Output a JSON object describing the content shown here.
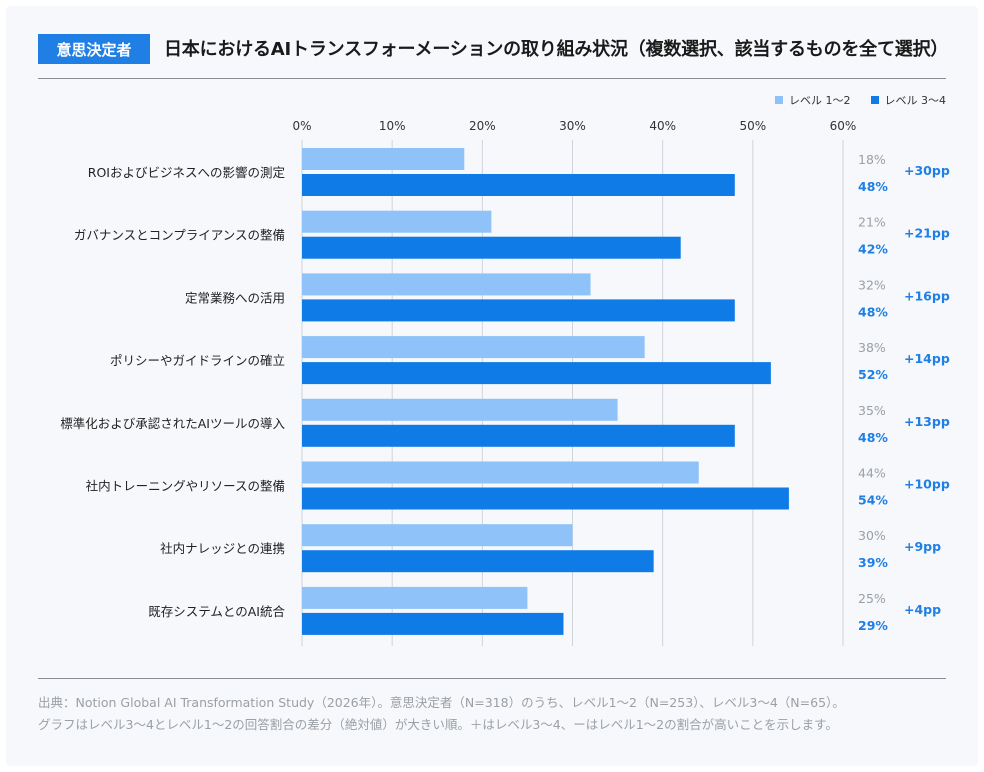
{
  "header": {
    "badge": "意思決定者",
    "title": "日本におけるAIトランスフォーメーションの取り組み状況（複数選択、該当するものを全て選択）"
  },
  "legend": [
    {
      "label": "レベル 1〜2",
      "color": "#8ec2f8"
    },
    {
      "label": "レベル 3〜4",
      "color": "#0f7be6"
    }
  ],
  "footer": {
    "line1": "出典：Notion Global AI Transformation Study（2026年）。意思決定者（N=318）のうち、レベル1〜2（N=253）、レベル3〜4（N=65）。",
    "line2": "グラフはレベル3〜4とレベル1〜2の回答割合の差分（絶対値）が大きい順。＋はレベル3〜4、ーはレベル1〜2の割合が高いことを示します。"
  },
  "chart_data": {
    "type": "bar",
    "orientation": "horizontal",
    "categories": [
      "ROIおよびビジネスへの影響の測定",
      "ガバナンスとコンプライアンスの整備",
      "定常業務への活用",
      "ポリシーやガイドラインの確立",
      "標準化および承認されたAIツールの導入",
      "社内トレーニングやリソースの整備",
      "社内ナレッジとの連携",
      "既存システムとのAI統合"
    ],
    "series": [
      {
        "name": "レベル 1〜2",
        "values": [
          18,
          21,
          32,
          38,
          35,
          44,
          30,
          25
        ],
        "color": "#8ec2f8"
      },
      {
        "name": "レベル 3〜4",
        "values": [
          48,
          42,
          48,
          52,
          48,
          54,
          39,
          29
        ],
        "color": "#0f7be6"
      }
    ],
    "value_labels": {
      "level12": [
        "18%",
        "21%",
        "32%",
        "38%",
        "35%",
        "44%",
        "30%",
        "25%"
      ],
      "level34": [
        "48%",
        "42%",
        "48%",
        "52%",
        "48%",
        "54%",
        "39%",
        "29%"
      ]
    },
    "differences": [
      "+30pp",
      "+21pp",
      "+16pp",
      "+14pp",
      "+13pp",
      "+10pp",
      "+9pp",
      "+4pp"
    ],
    "xticks": [
      "0%",
      "10%",
      "20%",
      "30%",
      "40%",
      "50%",
      "60%"
    ],
    "xlim": [
      0,
      60
    ],
    "grid": true,
    "legend_position": "top-right",
    "label_color_level12": "#9aa0a6",
    "label_color_level34": "#1f7fe5",
    "diff_color": "#1f7fe5",
    "grid_color": "#cfd4da"
  }
}
